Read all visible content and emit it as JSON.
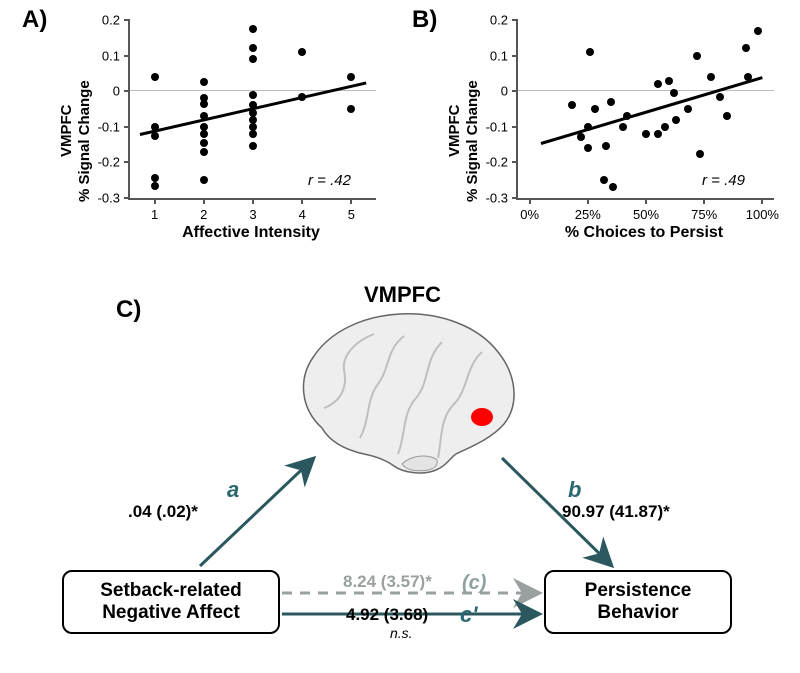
{
  "panel_labels": {
    "A": "A)",
    "B": "B)",
    "C": "C)"
  },
  "chartA": {
    "type": "scatter",
    "ylabel_line1": "VMPFC",
    "ylabel_line2": "% Signal Change",
    "xlabel": "Affective Intensity",
    "xlim": [
      0.5,
      5.5
    ],
    "ylim": [
      -0.3,
      0.2
    ],
    "yticks": [
      -0.3,
      -0.2,
      -0.1,
      0,
      0.1,
      0.2
    ],
    "xticks": [
      1,
      2,
      3,
      4,
      5
    ],
    "ytick_labels": [
      "-0.3",
      "-0.2",
      "-0.1",
      "0",
      "0.1",
      "0.2"
    ],
    "xtick_labels": [
      "1",
      "2",
      "3",
      "4",
      "5"
    ],
    "trend_x1": 0.7,
    "trend_y1": -0.125,
    "trend_x2": 5.3,
    "trend_y2": 0.02,
    "correlation_label": "r = .42",
    "points": [
      [
        1,
        0.04
      ],
      [
        1,
        -0.1
      ],
      [
        1,
        -0.125
      ],
      [
        1,
        -0.245
      ],
      [
        1,
        -0.265
      ],
      [
        2,
        0.025
      ],
      [
        2,
        -0.02
      ],
      [
        2,
        -0.035
      ],
      [
        2,
        -0.07
      ],
      [
        2,
        -0.1
      ],
      [
        2,
        -0.12
      ],
      [
        2,
        -0.145
      ],
      [
        2,
        -0.17
      ],
      [
        2,
        -0.25
      ],
      [
        3,
        0.175
      ],
      [
        3,
        0.12
      ],
      [
        3,
        0.09
      ],
      [
        3,
        -0.01
      ],
      [
        3,
        -0.04
      ],
      [
        3,
        -0.06
      ],
      [
        3,
        -0.08
      ],
      [
        3,
        -0.1
      ],
      [
        3,
        -0.12
      ],
      [
        3,
        -0.155
      ],
      [
        4,
        0.11
      ],
      [
        4,
        -0.015
      ],
      [
        5,
        0.04
      ],
      [
        5,
        -0.05
      ]
    ],
    "marker_size": 8,
    "marker_color": "#000000",
    "axis_color": "#555555",
    "background_color": "#ffffff",
    "label_fontsize": 16,
    "tick_fontsize": 13
  },
  "chartB": {
    "type": "scatter",
    "ylabel_line1": "VMPFC",
    "ylabel_line2": "% Signal Change",
    "xlabel": "% Choices to Persist",
    "xlim": [
      -5,
      105
    ],
    "ylim": [
      -0.3,
      0.2
    ],
    "yticks": [
      -0.3,
      -0.2,
      -0.1,
      0,
      0.1,
      0.2
    ],
    "xticks": [
      0,
      25,
      50,
      75,
      100
    ],
    "ytick_labels": [
      "-0.3",
      "-0.2",
      "-0.1",
      "0",
      "0.1",
      "0.2"
    ],
    "xtick_labels": [
      "0%",
      "25%",
      "50%",
      "75%",
      "100%"
    ],
    "trend_x1": 5,
    "trend_y1": -0.15,
    "trend_x2": 100,
    "trend_y2": 0.035,
    "correlation_label": "r = .49",
    "points": [
      [
        18,
        -0.04
      ],
      [
        22,
        -0.13
      ],
      [
        25,
        -0.1
      ],
      [
        25,
        -0.16
      ],
      [
        26,
        0.11
      ],
      [
        28,
        -0.05
      ],
      [
        32,
        -0.25
      ],
      [
        33,
        -0.155
      ],
      [
        35,
        -0.03
      ],
      [
        36,
        -0.27
      ],
      [
        40,
        -0.1
      ],
      [
        42,
        -0.07
      ],
      [
        50,
        -0.12
      ],
      [
        55,
        0.02
      ],
      [
        55,
        -0.12
      ],
      [
        58,
        -0.1
      ],
      [
        60,
        0.03
      ],
      [
        62,
        -0.005
      ],
      [
        63,
        -0.08
      ],
      [
        68,
        -0.05
      ],
      [
        72,
        0.1
      ],
      [
        73,
        -0.175
      ],
      [
        78,
        0.04
      ],
      [
        82,
        -0.015
      ],
      [
        85,
        -0.07
      ],
      [
        93,
        0.12
      ],
      [
        94,
        0.04
      ],
      [
        98,
        0.17
      ]
    ],
    "marker_size": 8,
    "marker_color": "#000000",
    "axis_color": "#555555",
    "background_color": "#ffffff",
    "label_fontsize": 16,
    "tick_fontsize": 13
  },
  "mediation": {
    "mediator_label": "VMPFC",
    "iv_label_line1": "Setback-related",
    "iv_label_line2": "Negative Affect",
    "dv_label_line1": "Persistence",
    "dv_label_line2": "Behavior",
    "path_a_letter": "a",
    "path_b_letter": "b",
    "path_c_letter": "(c)",
    "path_cprime_letter": "c'",
    "path_a_value": ".04 (.02)*",
    "path_b_value": "90.97 (41.87)*",
    "path_c_value": "8.24 (3.57)*",
    "path_cprime_value": "4.92 (3.68)",
    "path_cprime_ns": "n.s.",
    "roi_color": "#ff0000",
    "arrow_color": "#2a585e",
    "dashed_color": "#9aa0a0",
    "path_letter_color": "#2a6870",
    "box_border_color": "#000000",
    "label_fontsize_bold": 17,
    "path_letter_fontsize": 20
  }
}
